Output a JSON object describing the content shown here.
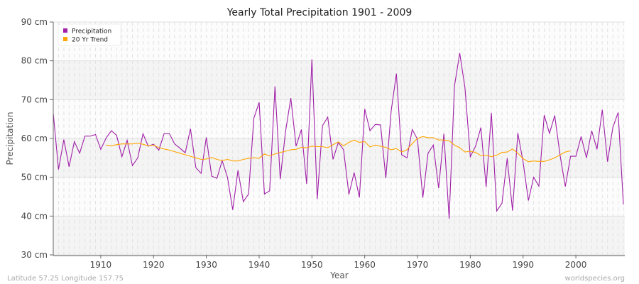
{
  "chart_data": {
    "type": "line",
    "title": "Yearly Total Precipitation 1901 - 2009",
    "xlabel": "Year",
    "ylabel": "Precipitation",
    "xlim": [
      1901,
      2009
    ],
    "ylim": [
      30,
      90
    ],
    "x_ticks": [
      1910,
      1920,
      1930,
      1940,
      1950,
      1960,
      1970,
      1980,
      1990,
      2000
    ],
    "y_ticks": [
      30,
      40,
      50,
      60,
      70,
      80,
      90
    ],
    "y_tick_labels": [
      "30 cm",
      "40 cm",
      "50 cm",
      "60 cm",
      "70 cm",
      "80 cm",
      "90 cm"
    ],
    "grid": true,
    "legend_position": "top-left",
    "series": [
      {
        "name": "Precipitation",
        "color": "#a020a8",
        "x_start": 1901,
        "values": [
          66.5,
          52,
          59.7,
          52.7,
          59.2,
          56.2,
          60.6,
          60.6,
          61,
          57.2,
          60.1,
          62,
          60.8,
          55.3,
          59.5,
          53,
          55,
          61.2,
          58,
          58.5,
          57,
          61.2,
          61.2,
          58.6,
          57.5,
          56.3,
          62.5,
          52.5,
          51,
          60.3,
          50.3,
          49.7,
          54.3,
          50,
          41.6,
          51.8,
          43.7,
          45.7,
          65.2,
          69.3,
          45.7,
          46.5,
          73.4,
          49.5,
          61.7,
          70.4,
          58,
          62.3,
          48.3,
          80.4,
          44.4,
          63.3,
          65.5,
          54.6,
          59,
          57.1,
          45.6,
          51.2,
          44.8,
          67.6,
          62,
          63.6,
          63.5,
          49.8,
          67,
          76.7,
          55.8,
          55,
          62.3,
          59.8,
          44.7,
          56.2,
          58.3,
          47.2,
          61.2,
          39.3,
          73.5,
          82,
          73,
          55.3,
          58,
          62.8,
          47.5,
          66.6,
          41.3,
          43.3,
          54.9,
          41.4,
          61.4,
          54,
          44,
          50,
          47.7,
          66,
          61.3,
          65.9,
          55.7,
          47.6,
          55.4,
          55.4,
          60.5,
          55,
          62,
          57.2,
          67.4,
          54,
          62.8,
          66.7,
          43
        ]
      },
      {
        "name": "20 Yr Trend",
        "color": "#ffa500",
        "x_start": 1911,
        "values": [
          58.3,
          58.1,
          58.4,
          58.6,
          58.6,
          58.6,
          58.8,
          58.5,
          58.1,
          58.3,
          57.6,
          57.3,
          57.0,
          56.6,
          56.2,
          55.8,
          55.4,
          55.0,
          54.6,
          54.7,
          55.1,
          54.6,
          54.3,
          54.6,
          54.2,
          54.2,
          54.6,
          54.9,
          55.0,
          54.9,
          56.0,
          55.5,
          56.0,
          56.4,
          56.7,
          57.1,
          57.2,
          57.7,
          57.6,
          58.0,
          57.9,
          57.9,
          57.6,
          58.4,
          59.1,
          58.1,
          59.0,
          59.6,
          59.0,
          59.2,
          57.8,
          58.3,
          58.0,
          57.7,
          57.1,
          57.4,
          56.5,
          57.1,
          58.7,
          60.0,
          60.5,
          60.2,
          60.2,
          59.6,
          59.6,
          59.4,
          58.3,
          57.6,
          56.5,
          56.7,
          56.4,
          55.6,
          55.7,
          55.3,
          55.7,
          56.4,
          56.5,
          57.3,
          56.2,
          54.8,
          54.0,
          54.2,
          54.1,
          54.1,
          54.5,
          55.0,
          55.8,
          56.5,
          56.8
        ]
      }
    ]
  },
  "footer": {
    "location": "Latitude 57.25 Longitude 157.75",
    "source": "worldspecies.org"
  }
}
